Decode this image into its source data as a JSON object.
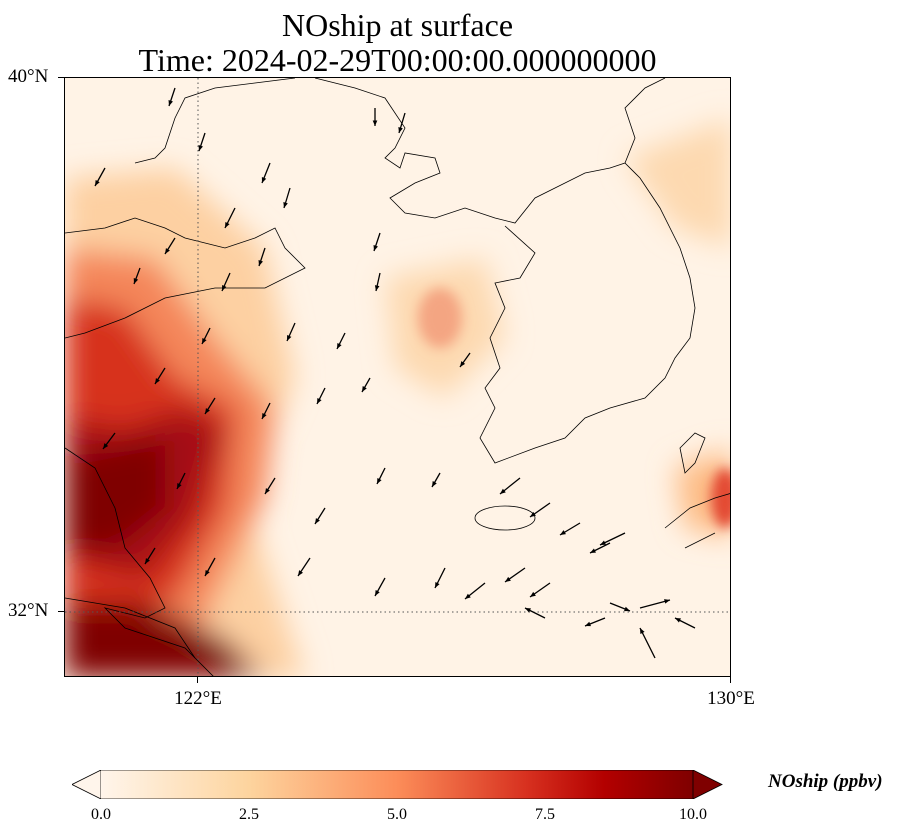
{
  "title": {
    "line1": "NOship at surface",
    "line2": "Time: 2024-02-29T00:00:00.000000000"
  },
  "map": {
    "extent": {
      "lon_min": 120,
      "lon_max": 130,
      "lat_min": 31,
      "lat_max": 40
    },
    "lat_ticks": [
      {
        "value": 40,
        "label": "40°N"
      },
      {
        "value": 32,
        "label": "32°N"
      }
    ],
    "lon_ticks": [
      {
        "value": 122,
        "label": "122°E"
      },
      {
        "value": 130,
        "label": "130°E"
      }
    ],
    "gridlines": {
      "lon": 122,
      "lat": 32,
      "style": "dotted"
    }
  },
  "colorbar": {
    "label": "NOship (ppbv)",
    "min": 0,
    "max": 10,
    "extend": "both",
    "ticks": [
      "0.0",
      "2.5",
      "5.0",
      "7.5",
      "10.0"
    ],
    "colors": [
      "#fff5eb",
      "#fdd49e",
      "#fc8d59",
      "#d7301f",
      "#b30000",
      "#7f0000"
    ]
  }
}
